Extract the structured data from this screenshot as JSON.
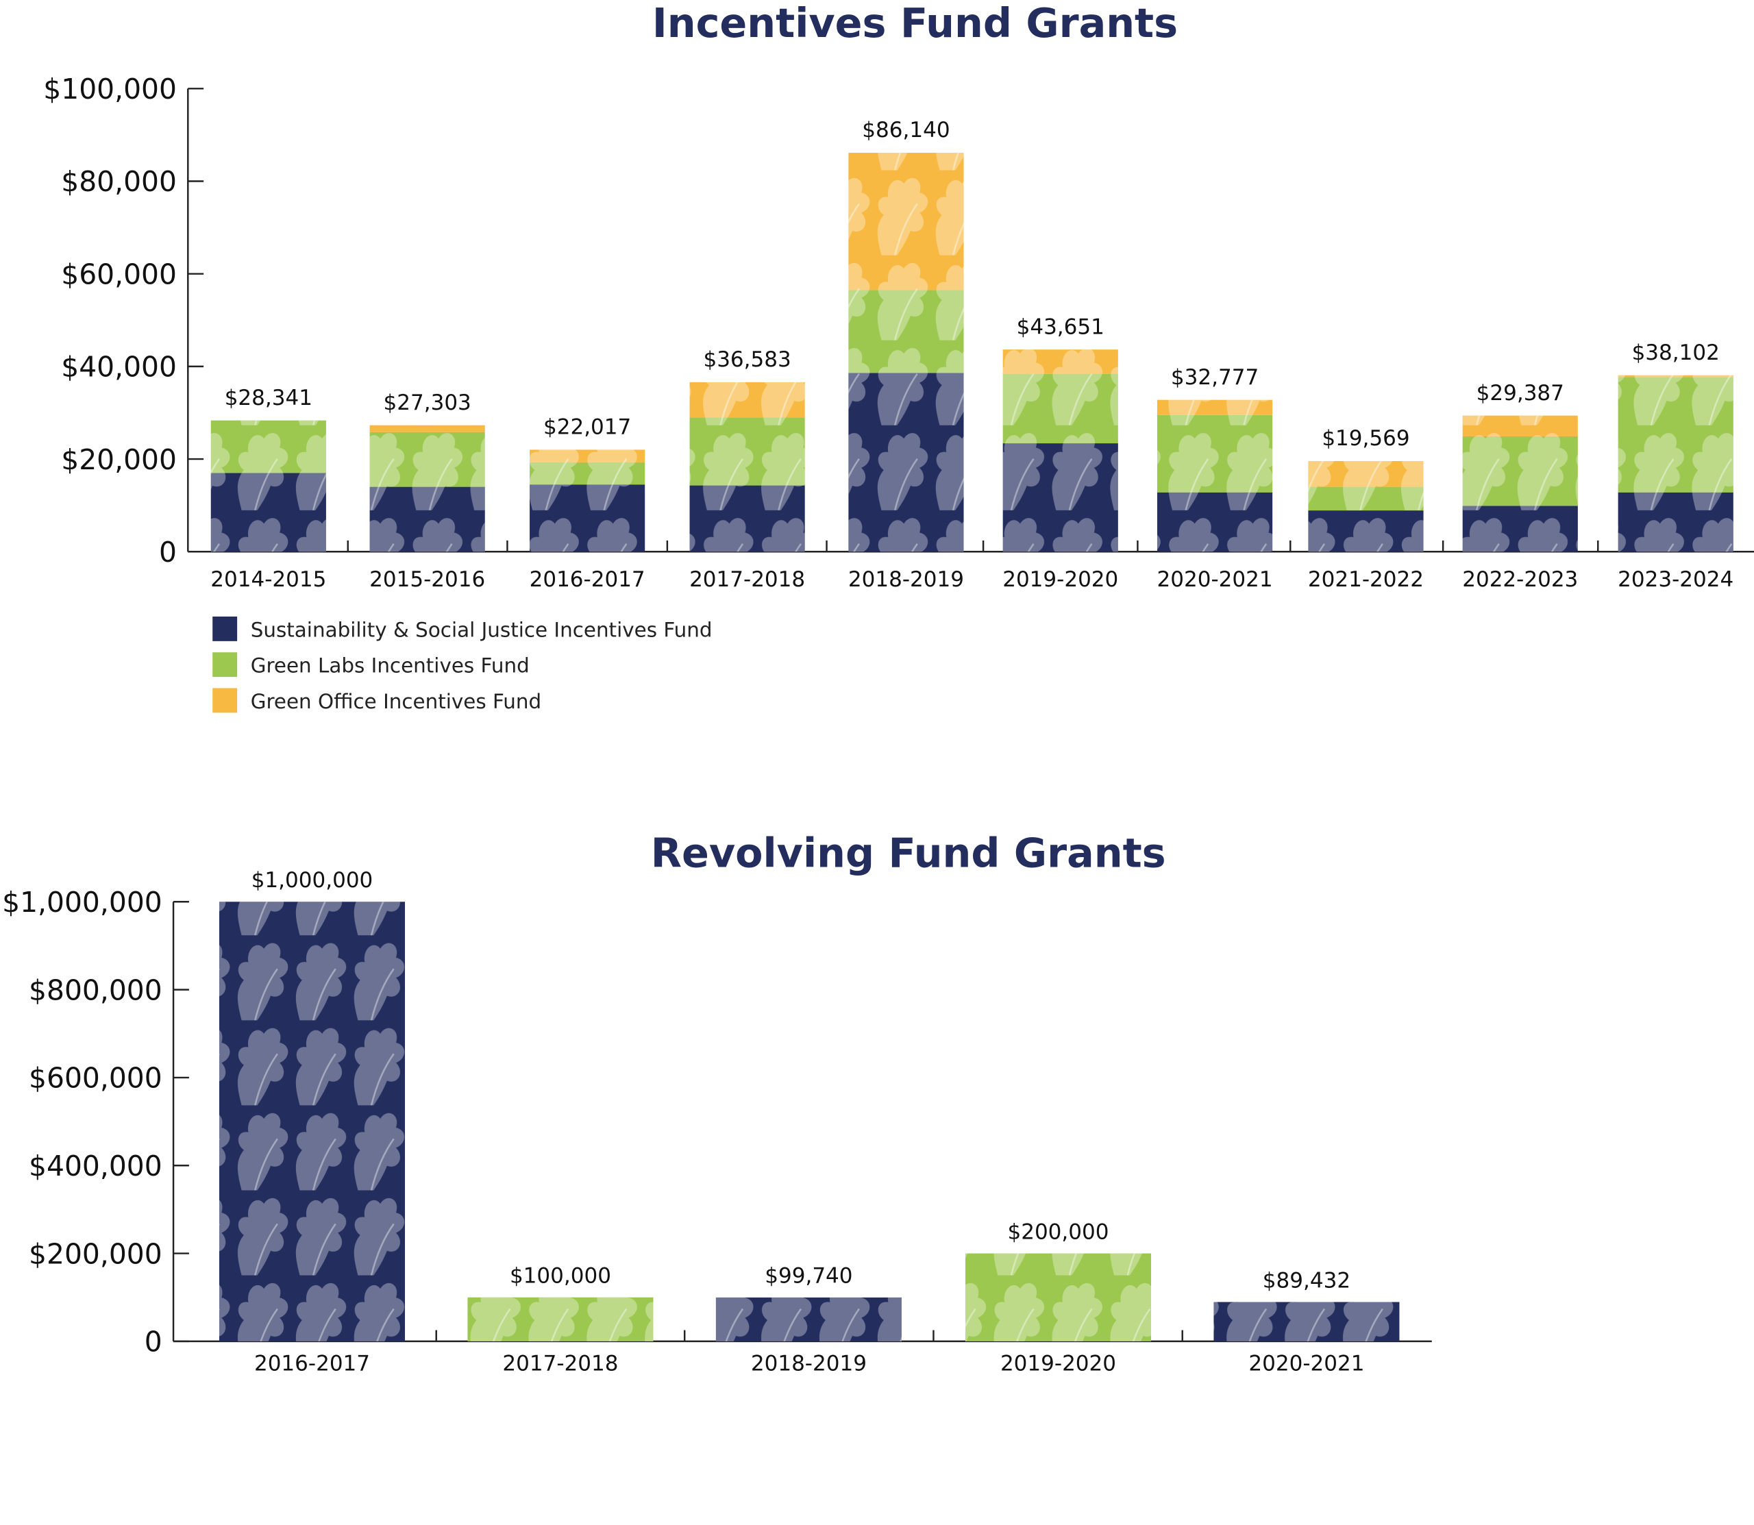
{
  "colors": {
    "navy": "#232d5e",
    "green": "#9cc84f",
    "orange": "#f7b942",
    "title": "#232d5e"
  },
  "chart_data": [
    {
      "type": "bar",
      "stacked": true,
      "title": "Incentives Fund Grants",
      "xlabel": "",
      "ylabel": "",
      "ylim": [
        0,
        100000
      ],
      "yticks": [
        0,
        20000,
        40000,
        60000,
        80000,
        100000
      ],
      "ytick_labels": [
        "0",
        "$20,000",
        "$40,000",
        "$60,000",
        "$80,000",
        "$100,000"
      ],
      "categories": [
        "2014-2015",
        "2015-2016",
        "2016-2017",
        "2017-2018",
        "2018-2019",
        "2019-2020",
        "2020-2021",
        "2021-2022",
        "2022-2023",
        "2023-2024"
      ],
      "series": [
        {
          "name": "Sustainability & Social Justice Incentives Fund",
          "color": "#232d5e",
          "values": [
            17000,
            14000,
            14500,
            14300,
            38600,
            23400,
            12800,
            8900,
            9900,
            12800
          ]
        },
        {
          "name": "Green Labs Incentives Fund",
          "color": "#9cc84f",
          "values": [
            11341,
            11800,
            4800,
            14700,
            17900,
            15000,
            16700,
            5100,
            15000,
            24900
          ]
        },
        {
          "name": "Green Office Incentives Fund",
          "color": "#f7b942",
          "values": [
            0,
            1503,
            2717,
            7583,
            29640,
            5251,
            3277,
            5569,
            4487,
            402
          ]
        }
      ],
      "totals": [
        28341,
        27303,
        22017,
        36583,
        86140,
        43651,
        32777,
        19569,
        29387,
        38102
      ],
      "total_labels": [
        "$28,341",
        "$27,303",
        "$22,017",
        "$36,583",
        "$86,140",
        "$43,651",
        "$32,777",
        "$19,569",
        "$29,387",
        "$38,102"
      ],
      "legend": {
        "position": "bottom-left",
        "entries": [
          "Sustainability & Social Justice Incentives Fund",
          "Green Labs Incentives Fund",
          "Green Office Incentives Fund"
        ]
      },
      "grid": false
    },
    {
      "type": "bar",
      "title": "Revolving Fund Grants",
      "xlabel": "",
      "ylabel": "",
      "ylim": [
        0,
        1000000
      ],
      "yticks": [
        0,
        200000,
        400000,
        600000,
        800000,
        1000000
      ],
      "ytick_labels": [
        "0",
        "$200,000",
        "$400,000",
        "$600,000",
        "$800,000",
        "$1,000,000"
      ],
      "categories": [
        "2016-2017",
        "2017-2018",
        "2018-2019",
        "2019-2020",
        "2020-2021"
      ],
      "values": [
        1000000,
        100000,
        99740,
        200000,
        89432
      ],
      "value_labels": [
        "$1,000,000",
        "$100,000",
        "$99,740",
        "$200,000",
        "$89,432"
      ],
      "bar_colors": [
        "#232d5e",
        "#9cc84f",
        "#232d5e",
        "#9cc84f",
        "#232d5e"
      ],
      "grid": false
    }
  ]
}
